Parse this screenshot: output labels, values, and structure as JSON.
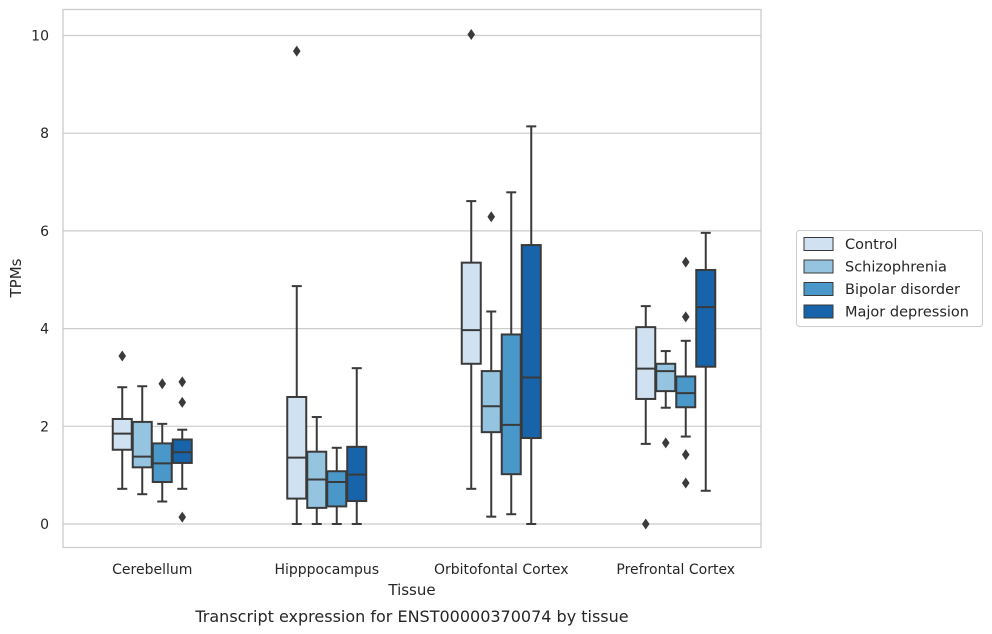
{
  "chart_data": {
    "type": "boxplot",
    "caption": "Transcript expression for ENST00000370074 by tissue",
    "xlabel": "Tissue",
    "ylabel": "TPMs",
    "ylim": [
      -0.48,
      10.55
    ],
    "yticks": [
      0,
      2,
      4,
      6,
      8,
      10
    ],
    "grid": "horizontal",
    "legend_position": "right",
    "categories": [
      "Cerebellum",
      "Hipppocampus",
      "Orbitofontal Cortex",
      "Prefrontal Cortex"
    ],
    "series": [
      {
        "name": "Control",
        "color": "#d0e1f2",
        "boxes": [
          {
            "whislo": 0.72,
            "q1": 1.52,
            "med": 1.85,
            "q3": 2.15,
            "whishi": 2.8,
            "fliers": [
              3.44
            ]
          },
          {
            "whislo": 0.0,
            "q1": 0.52,
            "med": 1.36,
            "q3": 2.6,
            "whishi": 4.87,
            "fliers": [
              9.68
            ]
          },
          {
            "whislo": 0.72,
            "q1": 3.28,
            "med": 3.97,
            "q3": 5.35,
            "whishi": 6.61,
            "fliers": [
              10.02
            ]
          },
          {
            "whislo": 1.64,
            "q1": 2.56,
            "med": 3.18,
            "q3": 4.03,
            "whishi": 4.46,
            "fliers": [
              0.0
            ]
          }
        ]
      },
      {
        "name": "Schizophrenia",
        "color": "#94c4df",
        "boxes": [
          {
            "whislo": 0.61,
            "q1": 1.16,
            "med": 1.38,
            "q3": 2.09,
            "whishi": 2.82,
            "fliers": []
          },
          {
            "whislo": 0.0,
            "q1": 0.33,
            "med": 0.91,
            "q3": 1.48,
            "whishi": 2.19,
            "fliers": []
          },
          {
            "whislo": 0.15,
            "q1": 1.88,
            "med": 2.41,
            "q3": 3.13,
            "whishi": 4.35,
            "fliers": [
              6.29
            ]
          },
          {
            "whislo": 2.38,
            "q1": 2.72,
            "med": 3.13,
            "q3": 3.28,
            "whishi": 3.54,
            "fliers": [
              1.66
            ]
          }
        ]
      },
      {
        "name": "Bipolar disorder",
        "color": "#4a98c9",
        "boxes": [
          {
            "whislo": 0.46,
            "q1": 0.86,
            "med": 1.24,
            "q3": 1.65,
            "whishi": 2.05,
            "fliers": [
              2.87
            ]
          },
          {
            "whislo": 0.0,
            "q1": 0.36,
            "med": 0.86,
            "q3": 1.08,
            "whishi": 1.56,
            "fliers": []
          },
          {
            "whislo": 0.2,
            "q1": 1.02,
            "med": 2.03,
            "q3": 3.88,
            "whishi": 6.79,
            "fliers": []
          },
          {
            "whislo": 1.79,
            "q1": 2.39,
            "med": 2.68,
            "q3": 3.02,
            "whishi": 3.75,
            "fliers": [
              5.36,
              4.24,
              1.42,
              0.84
            ]
          }
        ]
      },
      {
        "name": "Major depression",
        "color": "#1764ab",
        "boxes": [
          {
            "whislo": 0.72,
            "q1": 1.25,
            "med": 1.47,
            "q3": 1.73,
            "whishi": 1.93,
            "fliers": [
              2.91,
              2.49,
              0.14
            ]
          },
          {
            "whislo": 0.0,
            "q1": 0.47,
            "med": 1.01,
            "q3": 1.58,
            "whishi": 3.19,
            "fliers": []
          },
          {
            "whislo": 0.0,
            "q1": 1.76,
            "med": 3.0,
            "q3": 5.71,
            "whishi": 8.14,
            "fliers": []
          },
          {
            "whislo": 0.68,
            "q1": 3.22,
            "med": 4.44,
            "q3": 5.2,
            "whishi": 5.96,
            "fliers": []
          }
        ]
      }
    ]
  }
}
